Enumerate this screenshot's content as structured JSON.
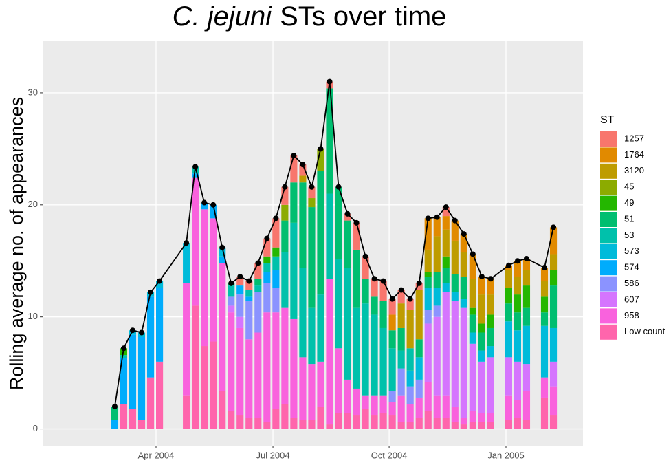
{
  "chart_data": {
    "type": "stacked-bar-line",
    "title_species": "C. jejuni",
    "title": "STs over time",
    "y_label": "Rolling average no. of appearances",
    "legend_title": "ST",
    "xlim": [
      -8.06,
      52.3
    ],
    "xticks": [
      {
        "value": 4.61,
        "label": "Apr 2004"
      },
      {
        "value": 17.67,
        "label": "Jul 2004"
      },
      {
        "value": 30.65,
        "label": "Oct 2004"
      },
      {
        "value": 43.7,
        "label": "Jan 2005"
      }
    ],
    "ylim": [
      -1.5,
      34.6
    ],
    "yticks": [
      0,
      10,
      20,
      30
    ],
    "grid": true,
    "series": [
      {
        "name": "1257",
        "color": "#F8766D",
        "values": [
          0,
          0,
          0,
          0,
          0,
          0,
          null,
          null,
          0,
          0,
          0,
          0,
          0,
          0,
          0.8,
          0.8,
          1.4,
          1.6,
          2.6,
          1.6,
          2.4,
          1,
          1,
          0,
          0.6,
          0,
          0.6,
          2.4,
          2,
          1.6,
          1.8,
          1.4,
          1.2,
          1,
          0.6,
          0,
          0,
          0.8,
          0,
          0,
          0,
          0,
          0,
          null,
          0,
          0,
          0,
          null,
          0,
          0
        ]
      },
      {
        "name": "1764",
        "color": "#E18A00",
        "values": [
          0,
          0,
          0,
          0,
          0,
          0,
          null,
          null,
          0,
          0,
          0,
          0,
          0,
          0,
          0,
          0,
          0,
          0,
          0,
          0,
          0,
          0,
          0,
          0,
          0,
          0,
          0,
          0,
          0,
          0,
          0,
          1.4,
          0,
          0,
          0,
          2.8,
          1.7,
          1.2,
          1.8,
          1.6,
          2.2,
          1.6,
          1.4,
          null,
          0.4,
          1.4,
          1,
          null,
          1.2,
          2.4
        ]
      },
      {
        "name": "3120",
        "color": "#BE9C00",
        "values": [
          0,
          0,
          0,
          0,
          0,
          0,
          null,
          null,
          0,
          0,
          0,
          0,
          0,
          0,
          0,
          0,
          0,
          0,
          0,
          0,
          0,
          0.6,
          0,
          0,
          0,
          0,
          0,
          0,
          0,
          0,
          0,
          0,
          2.2,
          3.4,
          4.4,
          2,
          3.2,
          2.4,
          3,
          2.2,
          2.6,
          2.6,
          1.8,
          null,
          1.6,
          1.6,
          1.4,
          null,
          1.4,
          1.4
        ]
      },
      {
        "name": "45",
        "color": "#8CAB00",
        "values": [
          0,
          0,
          0,
          0,
          0,
          0,
          null,
          null,
          0,
          0,
          0,
          0,
          0,
          0,
          0,
          0,
          0,
          0,
          0,
          1.4,
          0,
          0,
          0.8,
          2,
          0,
          0,
          0,
          0,
          0,
          0,
          0,
          0,
          0,
          0,
          0,
          0,
          0,
          0,
          0,
          0,
          0,
          0,
          0,
          null,
          0,
          0,
          0,
          null,
          0,
          0
        ]
      },
      {
        "name": "49",
        "color": "#24B700",
        "values": [
          0,
          0.6,
          0,
          0,
          0,
          0,
          null,
          null,
          0,
          0,
          0,
          0,
          0,
          0,
          0,
          0,
          0,
          0.6,
          0.8,
          0,
          0,
          0,
          0,
          0,
          0,
          0,
          0,
          0,
          0,
          0,
          0,
          0,
          0,
          0,
          0,
          0.4,
          0,
          1,
          0,
          0,
          0.6,
          0.8,
          1.2,
          null,
          1.4,
          1.6,
          2,
          null,
          1.4,
          1.4
        ]
      },
      {
        "name": "51",
        "color": "#00BE70",
        "values": [
          1.2,
          0,
          0,
          0,
          0,
          0,
          null,
          null,
          0,
          0,
          0,
          0,
          0,
          0.2,
          0,
          0,
          0.6,
          0,
          0,
          2.8,
          3.6,
          7.6,
          9,
          11,
          9.4,
          6.4,
          4.2,
          5.2,
          2.2,
          1.6,
          2.4,
          1.6,
          2,
          0,
          1.6,
          1,
          1.4,
          1.4,
          1.6,
          2,
          1.6,
          1.6,
          1.6,
          null,
          1.6,
          1.6,
          1.6,
          null,
          1.2,
          3.8
        ]
      },
      {
        "name": "53",
        "color": "#00C1AB",
        "values": [
          0,
          0.3,
          0,
          0,
          0,
          0,
          null,
          null,
          0,
          0.6,
          0,
          0,
          0,
          1,
          0,
          0.6,
          0.6,
          0.8,
          1.2,
          5,
          8.6,
          8,
          5,
          6,
          7.6,
          8,
          10,
          7.2,
          8.2,
          7.2,
          6,
          3.8,
          1.6,
          2,
          0,
          0,
          0,
          0,
          0,
          0,
          0,
          0,
          0,
          null,
          0,
          0,
          0,
          null,
          0,
          0
        ]
      },
      {
        "name": "573",
        "color": "#00BBDA",
        "values": [
          0,
          0,
          0.4,
          0.4,
          0.4,
          0.6,
          null,
          null,
          3.6,
          0,
          0,
          0,
          0.8,
          0,
          0,
          0,
          0,
          0,
          0,
          0,
          0,
          0,
          0,
          0,
          0,
          0,
          0,
          0,
          0,
          0,
          0,
          0,
          0,
          1.4,
          2,
          2,
          1.6,
          0.8,
          0.8,
          0.8,
          1,
          1,
          1,
          null,
          3.2,
          2.8,
          3.4,
          null,
          4.6,
          3
        ]
      },
      {
        "name": "574",
        "color": "#00ACFC",
        "values": [
          0.8,
          4.1,
          6.6,
          7.4,
          7.2,
          6.6,
          null,
          null,
          0,
          0.4,
          0.6,
          1.2,
          0.6,
          0,
          0.8,
          0.4,
          0,
          1,
          1.6,
          0,
          0,
          0,
          0,
          0,
          0,
          0,
          0,
          0,
          0,
          0,
          0,
          0,
          0,
          0,
          0,
          0,
          0,
          0,
          0,
          0,
          0,
          0,
          0,
          null,
          0,
          0,
          0,
          null,
          0,
          0
        ]
      },
      {
        "name": "586",
        "color": "#8B93FF",
        "values": [
          0,
          0,
          0,
          0,
          0,
          0,
          null,
          null,
          0,
          0,
          0,
          0,
          0,
          0.8,
          2,
          3.4,
          3.6,
          2.6,
          2.2,
          0,
          0,
          0,
          0,
          0,
          0,
          0,
          0,
          0,
          0,
          0,
          0,
          1,
          2.4,
          1.6,
          1.6,
          1.2,
          1,
          0,
          0,
          0,
          0,
          0,
          0,
          null,
          0,
          0,
          0,
          null,
          0,
          0
        ]
      },
      {
        "name": "607",
        "color": "#D575FE",
        "values": [
          0,
          0,
          0,
          0,
          0,
          0,
          null,
          null,
          0,
          0,
          0,
          0,
          0,
          0.6,
          1,
          0,
          0,
          0,
          0,
          0,
          0,
          0,
          0,
          0,
          0,
          0,
          0,
          0,
          0,
          0,
          0,
          0,
          0,
          0,
          0,
          5.2,
          7,
          9.2,
          9.4,
          9.8,
          6,
          4.6,
          5,
          null,
          3.4,
          3.4,
          2.4,
          null,
          0,
          2.2
        ]
      },
      {
        "name": "958",
        "color": "#F962DD",
        "values": [
          0,
          0,
          0,
          0,
          0,
          0,
          null,
          null,
          10,
          11.4,
          12.2,
          11,
          11.4,
          8.8,
          7.8,
          7,
          7.6,
          9.8,
          8.6,
          8.6,
          8.8,
          5.6,
          5,
          4,
          13,
          5.8,
          3,
          2.4,
          1.2,
          1.8,
          1.6,
          1.2,
          2.4,
          1.6,
          1.8,
          2.6,
          2,
          2,
          1.4,
          0.6,
          1,
          0.8,
          0.8,
          null,
          2.2,
          1.6,
          2.6,
          null,
          1.8,
          2.6
        ]
      },
      {
        "name": "Low count",
        "color": "#FF65AC",
        "values": [
          0,
          2.2,
          1.8,
          0.8,
          4.6,
          6,
          null,
          null,
          3,
          11,
          7.4,
          7.8,
          3.4,
          1.6,
          1.2,
          1,
          1,
          0.6,
          1.8,
          2.2,
          1,
          0.8,
          0.8,
          2,
          0.4,
          1.4,
          1.4,
          1.2,
          1.8,
          1.2,
          1.4,
          1.2,
          0.6,
          0.6,
          1,
          1.6,
          1,
          1,
          0.6,
          0.4,
          0.6,
          0.6,
          0.6,
          null,
          0.8,
          1,
          0.8,
          null,
          2.8,
          1.2
        ]
      }
    ],
    "line": {
      "color": "#000000",
      "x": [
        0,
        1,
        2,
        3,
        4,
        5,
        8,
        9,
        10,
        11,
        12,
        13,
        14,
        15,
        16,
        17,
        18,
        19,
        20,
        21,
        22,
        23,
        24,
        25,
        26,
        27,
        28,
        29,
        30,
        31,
        32,
        33,
        34,
        35,
        36,
        37,
        38,
        39,
        40,
        41,
        42,
        44,
        45,
        46,
        48,
        49
      ],
      "values": [
        2,
        7.2,
        8.8,
        8.6,
        12.2,
        13.2,
        16.6,
        23.4,
        20.2,
        20,
        16.2,
        13,
        13.6,
        13.2,
        14.8,
        17,
        18.8,
        21.6,
        24.4,
        23.6,
        21.6,
        25,
        31,
        21.6,
        19.2,
        18.4,
        15.4,
        13.4,
        13.2,
        11.6,
        12.4,
        11.6,
        13,
        18.8,
        18.9,
        19.8,
        18.6,
        17.4,
        15.6,
        13.6,
        13.4,
        14.6,
        15,
        15.2,
        14.4,
        18
      ]
    }
  }
}
